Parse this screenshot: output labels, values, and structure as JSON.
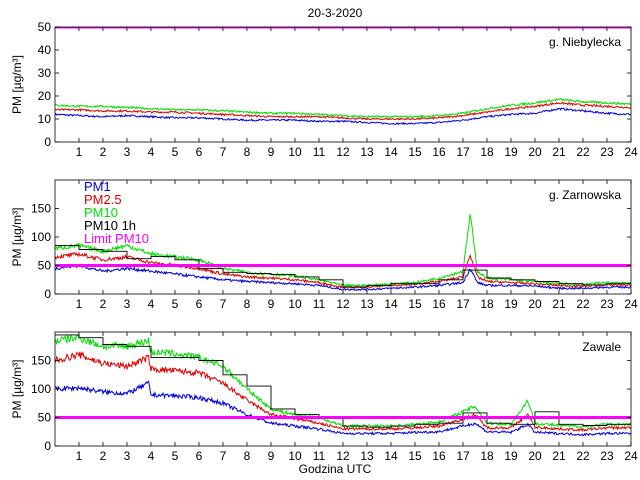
{
  "figure_title": "20-3-2020",
  "xlabel": "Godzina UTC",
  "colors": {
    "pm1": "#0000e0",
    "pm25": "#e00000",
    "pm10": "#00e000",
    "pm10_1h": "#000000",
    "limit": "#ff00ff"
  },
  "chart_data": [
    {
      "type": "line",
      "station": "g. Niebylecka",
      "ylabel": "PM [µg/m³]",
      "xlim": [
        0,
        24
      ],
      "ylim": [
        0,
        50
      ],
      "xticks": [
        1,
        2,
        3,
        4,
        5,
        6,
        7,
        8,
        9,
        10,
        11,
        12,
        13,
        14,
        15,
        16,
        17,
        18,
        19,
        20,
        21,
        22,
        23,
        24
      ],
      "yticks": [
        0,
        10,
        20,
        30,
        40,
        50
      ],
      "limit_pm10": 50,
      "series": [
        {
          "name": "PM1",
          "x": [
            0,
            1,
            2,
            3,
            4,
            5,
            6,
            7,
            8,
            9,
            10,
            11,
            12,
            13,
            14,
            15,
            16,
            17,
            18,
            19,
            20,
            21,
            22,
            23,
            24
          ],
          "values": [
            12,
            11.5,
            11,
            11.5,
            11,
            10.5,
            10.5,
            10,
            9.5,
            9.5,
            9.5,
            9,
            9,
            8.5,
            8,
            8,
            8.5,
            9.5,
            11,
            12,
            12.5,
            14.5,
            13.5,
            12.5,
            12
          ]
        },
        {
          "name": "PM2.5",
          "x": [
            0,
            1,
            2,
            3,
            4,
            5,
            6,
            7,
            8,
            9,
            10,
            11,
            12,
            13,
            14,
            15,
            16,
            17,
            18,
            19,
            20,
            21,
            22,
            23,
            24
          ],
          "values": [
            14,
            14,
            13.5,
            13.5,
            13,
            13,
            12.5,
            12,
            11.5,
            11,
            11,
            11,
            10.5,
            10,
            10,
            10,
            10.5,
            11.5,
            13,
            14.5,
            15.5,
            17,
            16,
            15.5,
            15
          ]
        },
        {
          "name": "PM10",
          "x": [
            0,
            1,
            2,
            3,
            4,
            5,
            6,
            7,
            8,
            9,
            10,
            11,
            12,
            13,
            14,
            15,
            16,
            17,
            18,
            19,
            20,
            21,
            22,
            23,
            24
          ],
          "values": [
            16,
            15.5,
            15.5,
            15,
            14.5,
            14,
            14,
            13.5,
            13,
            12.5,
            12.5,
            12,
            11.5,
            11,
            11,
            11,
            11.5,
            12.5,
            14.5,
            16,
            17,
            18.5,
            17.5,
            17,
            16.5
          ]
        }
      ]
    },
    {
      "type": "line",
      "station": "g. Zarnowska",
      "ylabel": "PM [µg/m³]",
      "xlim": [
        0,
        24
      ],
      "ylim": [
        0,
        200
      ],
      "xticks": [
        1,
        2,
        3,
        4,
        5,
        6,
        7,
        8,
        9,
        10,
        11,
        12,
        13,
        14,
        15,
        16,
        17,
        18,
        19,
        20,
        21,
        22,
        23,
        24
      ],
      "yticks": [
        0,
        50,
        100,
        150
      ],
      "limit_pm10": 50,
      "legend": [
        "PM1",
        "PM2.5",
        "PM10",
        "PM10 1h",
        "Limit PM10"
      ],
      "series": [
        {
          "name": "PM1",
          "x": [
            0,
            1,
            2,
            3,
            4,
            5,
            6,
            7,
            8,
            9,
            10,
            11,
            12,
            13,
            14,
            15,
            16,
            17,
            17.3,
            17.6,
            18,
            19,
            20,
            21,
            22,
            23,
            24
          ],
          "values": [
            45,
            50,
            40,
            45,
            40,
            35,
            30,
            25,
            22,
            20,
            18,
            15,
            8,
            8,
            10,
            12,
            15,
            20,
            45,
            20,
            15,
            15,
            14,
            10,
            10,
            12,
            12
          ]
        },
        {
          "name": "PM2.5",
          "x": [
            0,
            1,
            2,
            3,
            4,
            5,
            6,
            7,
            8,
            9,
            10,
            11,
            12,
            13,
            14,
            15,
            16,
            17,
            17.3,
            17.6,
            18,
            19,
            20,
            21,
            22,
            23,
            24
          ],
          "values": [
            65,
            70,
            60,
            65,
            55,
            50,
            45,
            35,
            30,
            28,
            25,
            20,
            12,
            12,
            15,
            17,
            22,
            30,
            70,
            30,
            22,
            20,
            18,
            15,
            14,
            16,
            16
          ]
        },
        {
          "name": "PM10",
          "x": [
            0,
            1,
            2,
            3,
            4,
            5,
            6,
            7,
            8,
            9,
            10,
            11,
            12,
            13,
            14,
            15,
            16,
            17,
            17.3,
            17.6,
            18,
            19,
            20,
            21,
            22,
            23,
            24
          ],
          "values": [
            80,
            85,
            75,
            85,
            70,
            65,
            60,
            45,
            38,
            35,
            32,
            25,
            15,
            15,
            18,
            20,
            28,
            40,
            140,
            40,
            28,
            25,
            22,
            18,
            17,
            20,
            20
          ]
        },
        {
          "name": "PM10 1h",
          "x": [
            0,
            1,
            2,
            3,
            4,
            5,
            6,
            7,
            8,
            9,
            10,
            11,
            12,
            13,
            14,
            15,
            16,
            17,
            18,
            19,
            20,
            21,
            22,
            23,
            24
          ],
          "values": [
            85,
            78,
            75,
            62,
            66,
            60,
            45,
            38,
            36,
            34,
            30,
            25,
            12,
            15,
            18,
            18,
            25,
            42,
            28,
            25,
            22,
            18,
            16,
            18,
            18
          ]
        }
      ]
    },
    {
      "type": "line",
      "station": "Zawale",
      "ylabel": "PM [µg/m³]",
      "xlim": [
        0,
        24
      ],
      "ylim": [
        0,
        200
      ],
      "xticks": [
        1,
        2,
        3,
        4,
        5,
        6,
        7,
        8,
        9,
        10,
        11,
        12,
        13,
        14,
        15,
        16,
        17,
        18,
        19,
        20,
        21,
        22,
        23,
        24
      ],
      "yticks": [
        0,
        50,
        100,
        150
      ],
      "limit_pm10": 50,
      "series": [
        {
          "name": "PM1",
          "x": [
            0,
            1,
            2,
            3,
            3.9,
            4,
            5,
            6,
            7,
            8,
            9,
            10,
            11,
            12,
            13,
            14,
            15,
            16,
            17,
            17.5,
            18,
            19,
            19.7,
            20,
            21,
            22,
            23,
            24
          ],
          "values": [
            100,
            102,
            95,
            92,
            110,
            90,
            88,
            85,
            75,
            55,
            40,
            35,
            30,
            22,
            22,
            22,
            24,
            25,
            35,
            40,
            25,
            24,
            38,
            24,
            22,
            20,
            22,
            22
          ]
        },
        {
          "name": "PM2.5",
          "x": [
            0,
            1,
            2,
            3,
            3.9,
            4,
            5,
            6,
            7,
            8,
            9,
            10,
            11,
            12,
            13,
            14,
            15,
            16,
            17,
            17.5,
            18,
            19,
            19.7,
            20,
            21,
            22,
            23,
            24
          ],
          "values": [
            150,
            160,
            145,
            140,
            155,
            135,
            132,
            128,
            110,
            80,
            55,
            48,
            40,
            30,
            30,
            30,
            32,
            35,
            48,
            55,
            32,
            32,
            55,
            33,
            30,
            28,
            32,
            32
          ]
        },
        {
          "name": "PM10",
          "x": [
            0,
            1,
            2,
            3,
            3.9,
            4,
            5,
            6,
            7,
            8,
            9,
            10,
            11,
            12,
            13,
            14,
            15,
            16,
            17,
            17.5,
            18,
            19,
            19.7,
            20,
            21,
            22,
            23,
            24
          ],
          "values": [
            185,
            190,
            175,
            175,
            185,
            165,
            162,
            155,
            140,
            100,
            65,
            55,
            50,
            35,
            35,
            35,
            38,
            42,
            60,
            70,
            40,
            38,
            80,
            40,
            36,
            34,
            38,
            38
          ]
        },
        {
          "name": "PM10 1h",
          "x": [
            0,
            1,
            2,
            3,
            4,
            5,
            6,
            7,
            8,
            9,
            10,
            11,
            12,
            13,
            14,
            15,
            16,
            17,
            18,
            19,
            20,
            21,
            22,
            23,
            24
          ],
          "values": [
            195,
            190,
            178,
            175,
            155,
            155,
            150,
            125,
            105,
            65,
            55,
            48,
            35,
            33,
            35,
            38,
            40,
            58,
            40,
            38,
            60,
            38,
            36,
            38,
            38
          ]
        }
      ]
    }
  ]
}
